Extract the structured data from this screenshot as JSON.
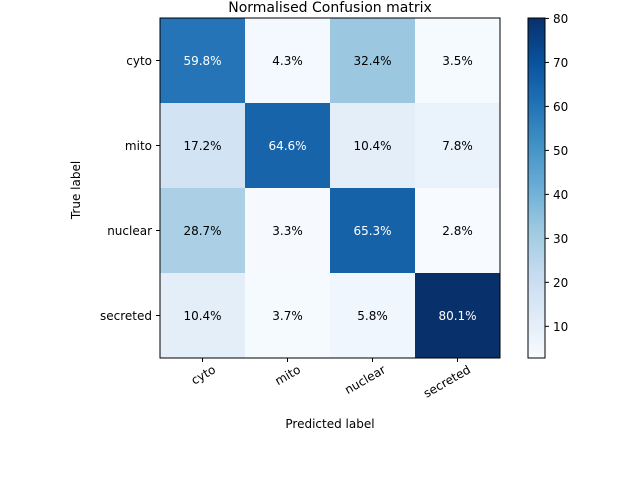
{
  "chart_data": {
    "type": "heatmap",
    "title": "Normalised Confusion matrix",
    "xlabel": "Predicted label",
    "ylabel": "True label",
    "x_categories": [
      "cyto",
      "mito",
      "nuclear",
      "secreted"
    ],
    "y_categories": [
      "cyto",
      "mito",
      "nuclear",
      "secreted"
    ],
    "values": [
      [
        59.8,
        4.3,
        32.4,
        3.5
      ],
      [
        17.2,
        64.6,
        10.4,
        7.8
      ],
      [
        28.7,
        3.3,
        65.3,
        2.8
      ],
      [
        10.4,
        3.7,
        5.8,
        80.1
      ]
    ],
    "cell_labels": [
      [
        "59.8%",
        "4.3%",
        "32.4%",
        "3.5%"
      ],
      [
        "17.2%",
        "64.6%",
        "10.4%",
        "7.8%"
      ],
      [
        "28.7%",
        "3.3%",
        "65.3%",
        "2.8%"
      ],
      [
        "10.4%",
        "3.7%",
        "5.8%",
        "80.1%"
      ]
    ],
    "colormap": "Blues",
    "colorbar": {
      "range": [
        2.8,
        80.1
      ],
      "ticks": [
        10,
        20,
        30,
        40,
        50,
        60,
        70,
        80
      ]
    },
    "x_tick_rotation": "30deg"
  }
}
